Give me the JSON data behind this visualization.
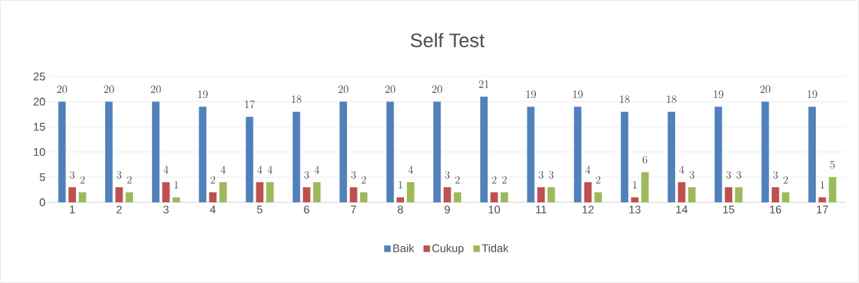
{
  "chart_data": {
    "type": "bar",
    "title": "Self Test",
    "categories": [
      "1",
      "2",
      "3",
      "4",
      "5",
      "6",
      "7",
      "8",
      "9",
      "10",
      "11",
      "12",
      "13",
      "14",
      "15",
      "16",
      "17"
    ],
    "series": [
      {
        "name": "Baik",
        "color": "#4f81bd",
        "values": [
          20,
          20,
          20,
          19,
          17,
          18,
          20,
          20,
          20,
          21,
          19,
          19,
          18,
          18,
          19,
          20,
          19
        ]
      },
      {
        "name": "Cukup",
        "color": "#c0504d",
        "values": [
          3,
          3,
          4,
          2,
          4,
          3,
          3,
          1,
          3,
          2,
          3,
          4,
          1,
          4,
          3,
          3,
          1
        ]
      },
      {
        "name": "Tidak",
        "color": "#9bbb59",
        "values": [
          2,
          2,
          1,
          4,
          4,
          4,
          2,
          4,
          2,
          2,
          3,
          2,
          6,
          3,
          3,
          2,
          5
        ]
      }
    ],
    "ylim": [
      0,
      25
    ],
    "yticks": [
      0,
      5,
      10,
      15,
      20,
      25
    ],
    "grid": "y",
    "legend": "bottom",
    "data_labels": true
  }
}
